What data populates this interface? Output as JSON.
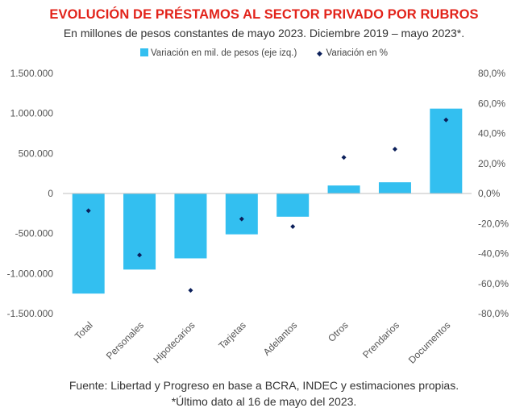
{
  "chart_data": {
    "type": "bar",
    "title": "EVOLUCIÓN DE PRÉSTAMOS AL SECTOR PRIVADO POR RUBROS",
    "subtitle": "En millones de pesos constantes de mayo 2023. Diciembre 2019 – mayo 2023*.",
    "categories": [
      "Total",
      "Personales",
      "Hipotecarios",
      "Tarjetas",
      "Adelantos",
      "Otros",
      "Prendarios",
      "Documentos"
    ],
    "series": [
      {
        "name": "Variación en mil. de pesos (eje izq.)",
        "kind": "bar",
        "axis": "left",
        "color": "#33bff0",
        "values": [
          -1250000,
          -950000,
          -810000,
          -510000,
          -290000,
          100000,
          140000,
          1060000
        ]
      },
      {
        "name": "Variación en %",
        "kind": "scatter",
        "axis": "right",
        "color": "#0b1f5a",
        "values": [
          -11.5,
          -41.0,
          -64.5,
          -17.0,
          -22.0,
          24.0,
          29.5,
          49.0
        ]
      }
    ],
    "y_left": {
      "ylim": [
        -1500000,
        1500000
      ],
      "ticks": [
        1500000,
        1000000,
        500000,
        0,
        -500000,
        -1000000,
        -1500000
      ],
      "tick_labels": [
        "1.500.000",
        "1.000.000",
        "500.000",
        "0",
        "-500.000",
        "-1.000.000",
        "-1.500.000"
      ]
    },
    "y_right": {
      "ylim": [
        -80,
        80
      ],
      "ticks": [
        80,
        60,
        40,
        20,
        0,
        -20,
        -40,
        -60,
        -80
      ],
      "tick_labels": [
        "80,0%",
        "60,0%",
        "40,0%",
        "20,0%",
        "0,0%",
        "-20,0%",
        "-40,0%",
        "-60,0%",
        "-80,0%"
      ]
    },
    "grid": false,
    "legend_position": "top-center"
  },
  "footer": {
    "source": "Fuente: Libertad y Progreso en base a BCRA, INDEC y estimaciones propias.",
    "note": "*Último dato al 16 de mayo del 2023."
  }
}
